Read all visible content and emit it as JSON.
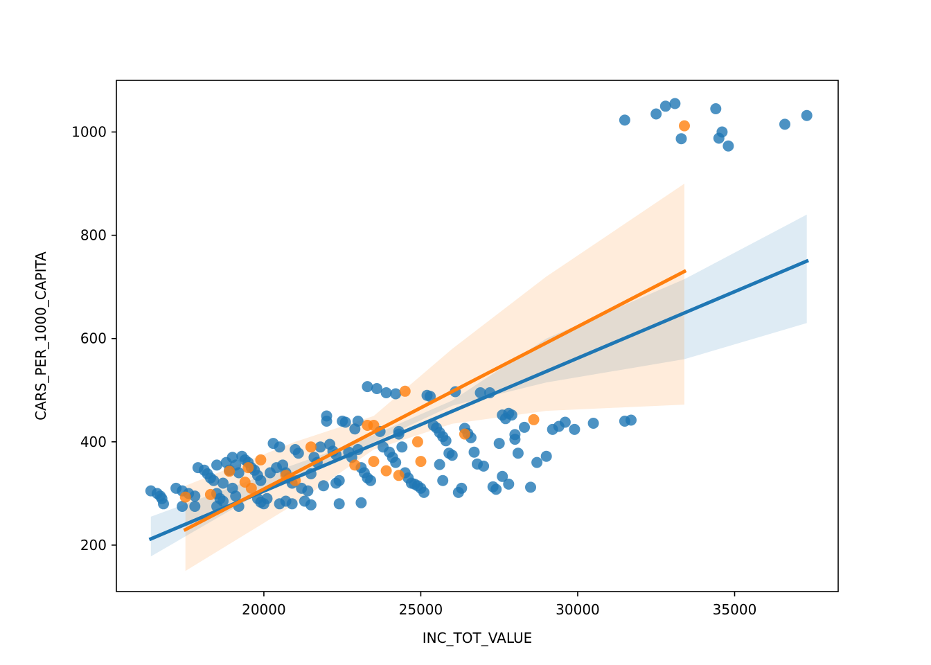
{
  "chart_data": {
    "type": "scatter",
    "title": "",
    "xlabel": "INC_TOT_VALUE",
    "ylabel": "CARS_PER_1000_CAPITA",
    "xlim": [
      15300,
      38300
    ],
    "ylim": [
      110,
      1100
    ],
    "xticks": [
      20000,
      25000,
      30000,
      35000
    ],
    "yticks": [
      200,
      400,
      600,
      800,
      1000
    ],
    "grid": false,
    "legend": "none",
    "series": [
      {
        "color": "#1f77b4",
        "points": [
          [
            16400,
            305
          ],
          [
            16600,
            300
          ],
          [
            16700,
            295
          ],
          [
            16750,
            290
          ],
          [
            16800,
            280
          ],
          [
            17200,
            310
          ],
          [
            17400,
            305
          ],
          [
            17600,
            300
          ],
          [
            17800,
            295
          ],
          [
            17400,
            275
          ],
          [
            17800,
            275
          ],
          [
            17900,
            350
          ],
          [
            18100,
            345
          ],
          [
            18200,
            338
          ],
          [
            18300,
            330
          ],
          [
            18400,
            325
          ],
          [
            18500,
            355
          ],
          [
            18500,
            300
          ],
          [
            18600,
            290
          ],
          [
            18700,
            285
          ],
          [
            18500,
            275
          ],
          [
            18800,
            360
          ],
          [
            18900,
            345
          ],
          [
            19000,
            370
          ],
          [
            19100,
            355
          ],
          [
            19200,
            340
          ],
          [
            19300,
            372
          ],
          [
            19400,
            365
          ],
          [
            19500,
            360
          ],
          [
            19600,
            350
          ],
          [
            19700,
            345
          ],
          [
            19800,
            335
          ],
          [
            19900,
            325
          ],
          [
            18700,
            320
          ],
          [
            19000,
            310
          ],
          [
            19100,
            295
          ],
          [
            19200,
            275
          ],
          [
            19800,
            290
          ],
          [
            19900,
            283
          ],
          [
            20000,
            280
          ],
          [
            20100,
            290
          ],
          [
            20200,
            340
          ],
          [
            20300,
            397
          ],
          [
            20400,
            350
          ],
          [
            20500,
            390
          ],
          [
            20600,
            355
          ],
          [
            20700,
            340
          ],
          [
            20800,
            330
          ],
          [
            20900,
            320
          ],
          [
            20500,
            280
          ],
          [
            20700,
            285
          ],
          [
            20900,
            280
          ],
          [
            21000,
            385
          ],
          [
            21100,
            378
          ],
          [
            21200,
            310
          ],
          [
            21300,
            285
          ],
          [
            21400,
            305
          ],
          [
            21500,
            338
          ],
          [
            21500,
            278
          ],
          [
            21600,
            370
          ],
          [
            21700,
            360
          ],
          [
            21800,
            390
          ],
          [
            21900,
            315
          ],
          [
            22000,
            450
          ],
          [
            22000,
            440
          ],
          [
            22100,
            395
          ],
          [
            22200,
            382
          ],
          [
            22300,
            375
          ],
          [
            22300,
            320
          ],
          [
            22400,
            325
          ],
          [
            22500,
            440
          ],
          [
            22600,
            438
          ],
          [
            22700,
            380
          ],
          [
            22800,
            370
          ],
          [
            22900,
            425
          ],
          [
            23000,
            440
          ],
          [
            23000,
            385
          ],
          [
            23100,
            350
          ],
          [
            23200,
            340
          ],
          [
            23300,
            330
          ],
          [
            23400,
            325
          ],
          [
            22400,
            280
          ],
          [
            23100,
            282
          ],
          [
            23300,
            507
          ],
          [
            23600,
            503
          ],
          [
            23700,
            420
          ],
          [
            23800,
            390
          ],
          [
            23900,
            495
          ],
          [
            24000,
            380
          ],
          [
            24100,
            370
          ],
          [
            24200,
            360
          ],
          [
            24200,
            493
          ],
          [
            24300,
            420
          ],
          [
            24300,
            415
          ],
          [
            24400,
            390
          ],
          [
            24500,
            340
          ],
          [
            24600,
            330
          ],
          [
            24700,
            320
          ],
          [
            24800,
            318
          ],
          [
            24900,
            315
          ],
          [
            25000,
            310
          ],
          [
            25100,
            302
          ],
          [
            25200,
            490
          ],
          [
            25300,
            488
          ],
          [
            25400,
            432
          ],
          [
            25500,
            427
          ],
          [
            25600,
            418
          ],
          [
            25700,
            410
          ],
          [
            25800,
            402
          ],
          [
            25900,
            378
          ],
          [
            26000,
            374
          ],
          [
            25600,
            356
          ],
          [
            25700,
            325
          ],
          [
            26100,
            497
          ],
          [
            26200,
            302
          ],
          [
            26300,
            310
          ],
          [
            26400,
            426
          ],
          [
            26500,
            416
          ],
          [
            26600,
            408
          ],
          [
            26700,
            380
          ],
          [
            26800,
            357
          ],
          [
            26900,
            495
          ],
          [
            27000,
            353
          ],
          [
            27200,
            495
          ],
          [
            27300,
            313
          ],
          [
            27400,
            308
          ],
          [
            27500,
            397
          ],
          [
            27600,
            452
          ],
          [
            27700,
            445
          ],
          [
            27800,
            455
          ],
          [
            27900,
            452
          ],
          [
            28000,
            414
          ],
          [
            28000,
            405
          ],
          [
            28100,
            378
          ],
          [
            27600,
            333
          ],
          [
            27800,
            318
          ],
          [
            28300,
            428
          ],
          [
            28500,
            312
          ],
          [
            28700,
            360
          ],
          [
            29000,
            372
          ],
          [
            29200,
            424
          ],
          [
            29400,
            430
          ],
          [
            29600,
            438
          ],
          [
            29900,
            424
          ],
          [
            30500,
            436
          ],
          [
            31500,
            440
          ],
          [
            31700,
            442
          ],
          [
            31500,
            1023
          ],
          [
            32500,
            1035
          ],
          [
            32800,
            1050
          ],
          [
            33100,
            1055
          ],
          [
            33300,
            987
          ],
          [
            34400,
            1045
          ],
          [
            34500,
            988
          ],
          [
            34600,
            1000
          ],
          [
            34800,
            973
          ],
          [
            36600,
            1015
          ],
          [
            37300,
            1032
          ]
        ],
        "fit_line": [
          [
            16400,
            212
          ],
          [
            37300,
            750
          ]
        ],
        "ci_band": {
          "lower": [
            [
              16400,
              178
            ],
            [
              20000,
              305
            ],
            [
              23000,
              385
            ],
            [
              26000,
              470
            ],
            [
              29000,
              515
            ],
            [
              33400,
              560
            ],
            [
              37300,
              630
            ]
          ],
          "upper": [
            [
              16400,
              255
            ],
            [
              20000,
              335
            ],
            [
              23000,
              400
            ],
            [
              26000,
              480
            ],
            [
              29000,
              600
            ],
            [
              33400,
              715
            ],
            [
              37300,
              840
            ]
          ]
        }
      },
      {
        "color": "#ff7f0e",
        "points": [
          [
            17500,
            293
          ],
          [
            18300,
            298
          ],
          [
            18900,
            343
          ],
          [
            19400,
            322
          ],
          [
            19500,
            350
          ],
          [
            19600,
            310
          ],
          [
            19900,
            365
          ],
          [
            20700,
            335
          ],
          [
            21000,
            325
          ],
          [
            21500,
            390
          ],
          [
            22900,
            355
          ],
          [
            23300,
            432
          ],
          [
            23500,
            432
          ],
          [
            23500,
            362
          ],
          [
            23900,
            344
          ],
          [
            24300,
            335
          ],
          [
            24500,
            498
          ],
          [
            24900,
            400
          ],
          [
            25000,
            362
          ],
          [
            26400,
            415
          ],
          [
            28600,
            443
          ],
          [
            33400,
            1012
          ]
        ],
        "fit_line": [
          [
            17500,
            230
          ],
          [
            33400,
            730
          ]
        ],
        "ci_band": {
          "lower": [
            [
              17500,
              150
            ],
            [
              21000,
              280
            ],
            [
              23500,
              385
            ],
            [
              26000,
              435
            ],
            [
              29000,
              460
            ],
            [
              33400,
              472
            ]
          ],
          "upper": [
            [
              17500,
              315
            ],
            [
              21000,
              400
            ],
            [
              23500,
              450
            ],
            [
              26000,
              580
            ],
            [
              29000,
              720
            ],
            [
              33400,
              900
            ]
          ]
        }
      }
    ]
  }
}
